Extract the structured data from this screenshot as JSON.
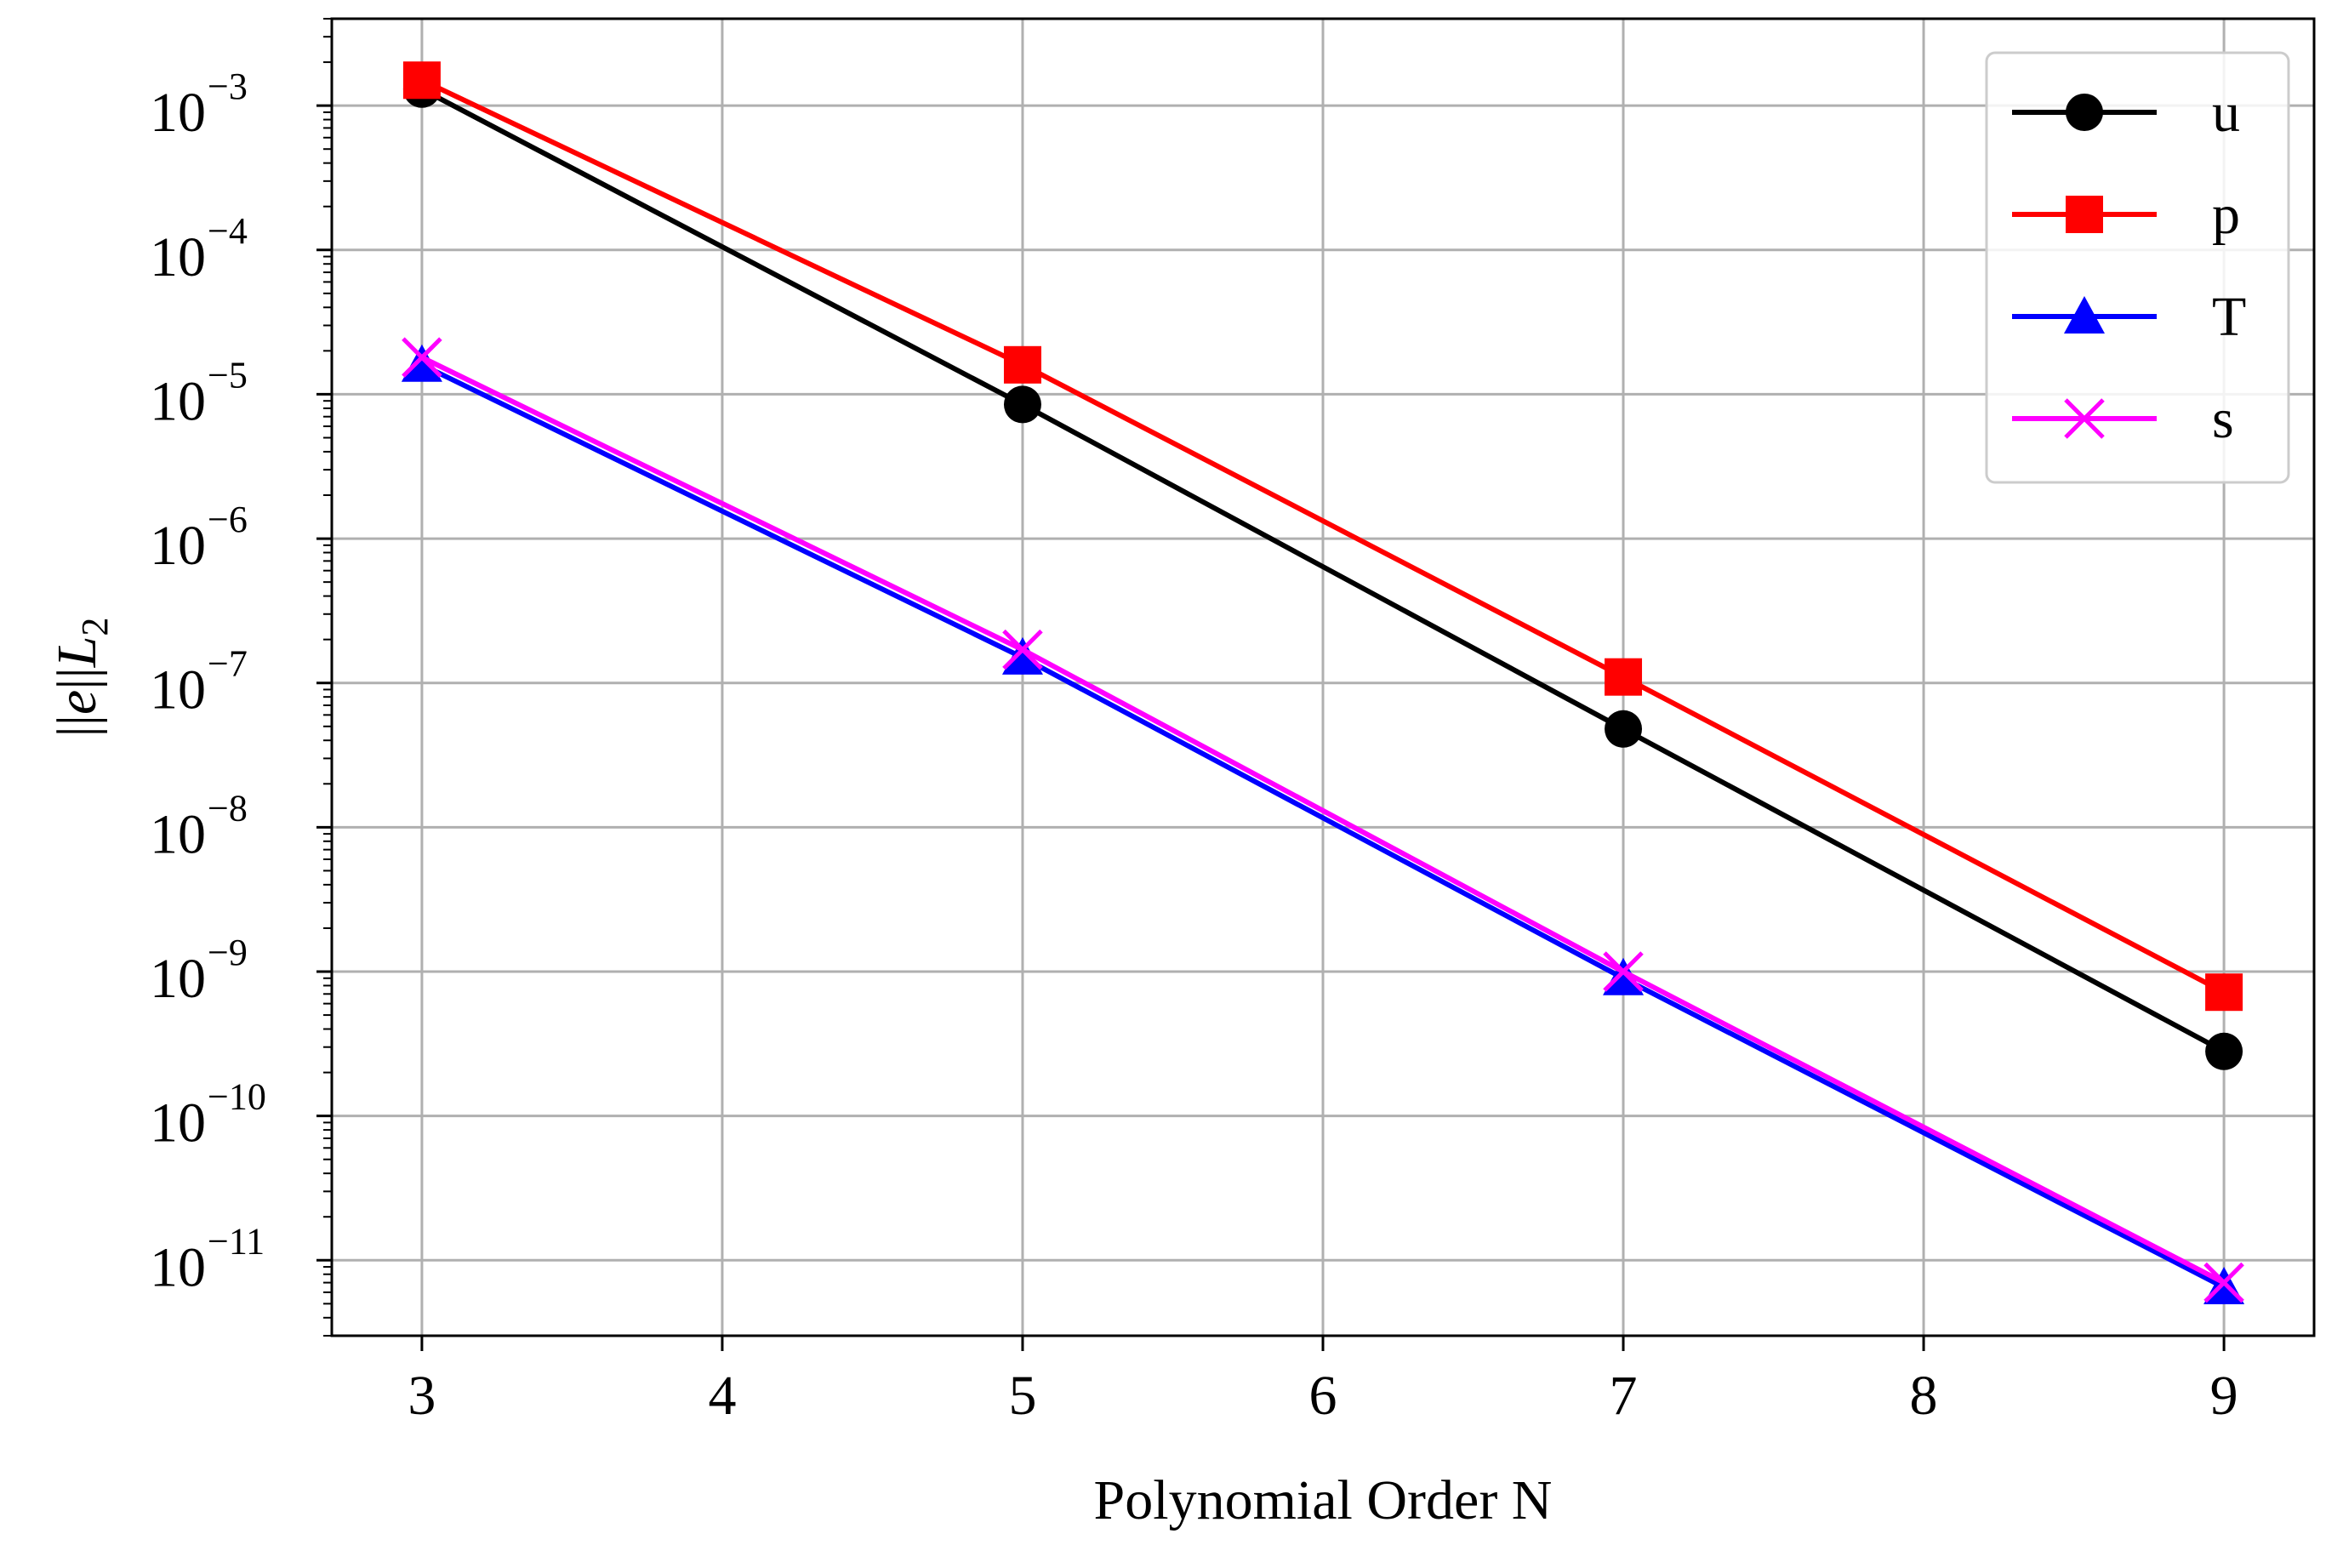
{
  "chart_data": {
    "type": "line",
    "xlabel": "Polynomial Order N",
    "ylabel": "||e||L2",
    "y_scale": "log",
    "grid": true,
    "legend_position": "top-right",
    "xlim": [
      2.7,
      9.3
    ],
    "ylim": [
      3e-12,
      0.004
    ],
    "x_ticks": [
      3,
      4,
      5,
      6,
      7,
      8,
      9
    ],
    "y_ticks": [
      {
        "value": 0.001,
        "base": "10",
        "exp": "−3"
      },
      {
        "value": 0.0001,
        "base": "10",
        "exp": "−4"
      },
      {
        "value": 1e-05,
        "base": "10",
        "exp": "−5"
      },
      {
        "value": 1e-06,
        "base": "10",
        "exp": "−6"
      },
      {
        "value": 1e-07,
        "base": "10",
        "exp": "−7"
      },
      {
        "value": 1e-08,
        "base": "10",
        "exp": "−8"
      },
      {
        "value": 1e-09,
        "base": "10",
        "exp": "−9"
      },
      {
        "value": 1e-10,
        "base": "10",
        "exp": "−10"
      },
      {
        "value": 1e-11,
        "base": "10",
        "exp": "−11"
      }
    ],
    "x": [
      3,
      5,
      7,
      9
    ],
    "series": [
      {
        "name": "u",
        "color": "#000000",
        "marker": "circle",
        "values": [
          0.0013,
          8.5e-06,
          4.8e-08,
          2.8e-10
        ]
      },
      {
        "name": "p",
        "color": "#ff0000",
        "marker": "square",
        "values": [
          0.0015,
          1.6e-05,
          1.1e-07,
          7.2e-10
        ]
      },
      {
        "name": "T",
        "color": "#0000ff",
        "marker": "triangle",
        "values": [
          1.6e-05,
          1.5e-07,
          9e-10,
          6.5e-12
        ]
      },
      {
        "name": "s",
        "color": "#ff00ff",
        "marker": "x",
        "values": [
          1.8e-05,
          1.7e-07,
          1e-09,
          7e-12
        ]
      }
    ]
  }
}
